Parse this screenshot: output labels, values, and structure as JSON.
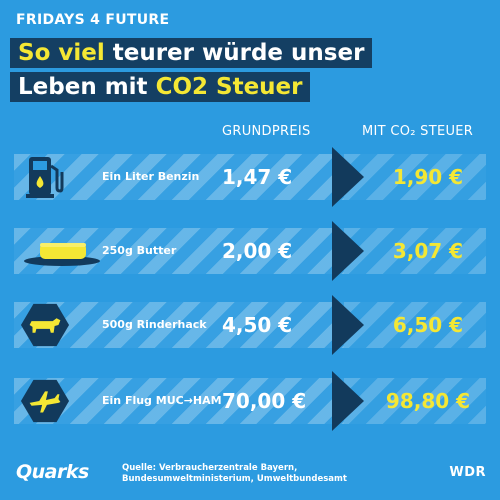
{
  "kicker": "FRIDAYS 4 FUTURE",
  "headline": {
    "line1_highlight": "So viel",
    "line1_rest": " teurer würde unser",
    "line2_rest": "Leben mit ",
    "line2_highlight": "CO2 Steuer"
  },
  "columns": {
    "base": "GRUNDPREIS",
    "co2": "MIT CO₂ STEUER"
  },
  "rows": [
    {
      "label": "Ein Liter Benzin",
      "base": "1,47 €",
      "co2": "1,90 €",
      "icon": "fuel-pump-icon"
    },
    {
      "label": "250g Butter",
      "base": "2,00 €",
      "co2": "3,07 €",
      "icon": "butter-icon"
    },
    {
      "label": "500g Rinderhack",
      "base": "4,50 €",
      "co2": "6,50 €",
      "icon": "cow-icon"
    },
    {
      "label": "Ein Flug MUC→HAM",
      "base": "70,00 €",
      "co2": "98,80 €",
      "icon": "airplane-icon"
    }
  ],
  "footer": {
    "logo": "Quarks",
    "source": "Quelle: Verbraucherzentrale Bayern, Bundesumweltministerium, Umweltbundesamt",
    "brand": "WDR"
  },
  "colors": {
    "background": "#2c9be0",
    "headline_bg": "#143f63",
    "accent_yellow": "#f4e734",
    "arrow": "#123a5c"
  }
}
